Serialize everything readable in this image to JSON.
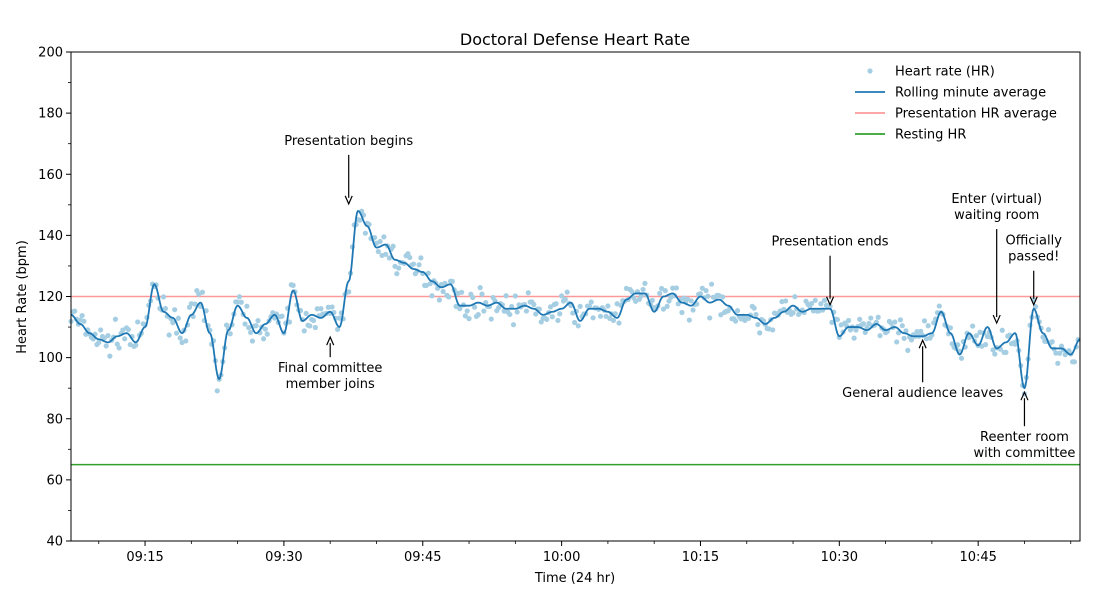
{
  "chart_data": {
    "type": "line",
    "title": "Doctoral Defense Heart Rate",
    "xlabel": "Time (24 hr)",
    "ylabel": "Heart Rate (bpm)",
    "xlim": [
      "09:07",
      "10:56"
    ],
    "ylim": [
      40,
      200
    ],
    "x_major_ticks": [
      "09:15",
      "09:30",
      "09:45",
      "10:00",
      "10:15",
      "10:30",
      "10:45"
    ],
    "y_major_ticks": [
      40,
      60,
      80,
      100,
      120,
      140,
      160,
      180,
      200
    ],
    "grid": false,
    "legend": {
      "location": "top-right",
      "entries": [
        {
          "label": "Heart rate (HR)",
          "kind": "points",
          "color": "#a6cee3"
        },
        {
          "label": "Rolling minute average",
          "kind": "line",
          "color": "#1f78b4"
        },
        {
          "label": "Presentation HR average",
          "kind": "line",
          "color": "#fb9a99"
        },
        {
          "label": "Resting HR",
          "kind": "line",
          "color": "#33a02c"
        }
      ]
    },
    "reference_lines": {
      "presentation_hr_average": 120,
      "resting_hr": 65
    },
    "rolling_average": [
      [
        "09:07",
        114
      ],
      [
        "09:08",
        111
      ],
      [
        "09:09",
        108
      ],
      [
        "09:10",
        106
      ],
      [
        "09:11",
        105
      ],
      [
        "09:12",
        107
      ],
      [
        "09:13",
        108
      ],
      [
        "09:14",
        105
      ],
      [
        "09:15",
        110
      ],
      [
        "09:16",
        124
      ],
      [
        "09:17",
        115
      ],
      [
        "09:18",
        113
      ],
      [
        "09:19",
        108
      ],
      [
        "09:20",
        114
      ],
      [
        "09:21",
        118
      ],
      [
        "09:22",
        108
      ],
      [
        "09:23",
        93
      ],
      [
        "09:24",
        109
      ],
      [
        "09:25",
        117
      ],
      [
        "09:26",
        113
      ],
      [
        "09:27",
        108
      ],
      [
        "09:28",
        111
      ],
      [
        "09:29",
        114
      ],
      [
        "09:30",
        108
      ],
      [
        "09:31",
        122
      ],
      [
        "09:32",
        112
      ],
      [
        "09:33",
        114
      ],
      [
        "09:34",
        113
      ],
      [
        "09:35",
        115
      ],
      [
        "09:36",
        110
      ],
      [
        "09:37",
        125
      ],
      [
        "09:38",
        148
      ],
      [
        "09:39",
        143
      ],
      [
        "09:40",
        136
      ],
      [
        "09:41",
        137
      ],
      [
        "09:42",
        132
      ],
      [
        "09:43",
        131
      ],
      [
        "09:44",
        129
      ],
      [
        "09:45",
        128
      ],
      [
        "09:46",
        125
      ],
      [
        "09:47",
        123
      ],
      [
        "09:48",
        124
      ],
      [
        "09:49",
        117
      ],
      [
        "09:50",
        117
      ],
      [
        "09:51",
        118
      ],
      [
        "09:52",
        117
      ],
      [
        "09:53",
        118
      ],
      [
        "09:54",
        116
      ],
      [
        "09:55",
        116
      ],
      [
        "09:56",
        117
      ],
      [
        "09:57",
        116
      ],
      [
        "09:58",
        114
      ],
      [
        "09:59",
        115
      ],
      [
        "10:00",
        116
      ],
      [
        "10:01",
        118
      ],
      [
        "10:02",
        112
      ],
      [
        "10:03",
        116
      ],
      [
        "10:04",
        116
      ],
      [
        "10:05",
        115
      ],
      [
        "10:06",
        113
      ],
      [
        "10:07",
        119
      ],
      [
        "10:08",
        121
      ],
      [
        "10:09",
        121
      ],
      [
        "10:10",
        115
      ],
      [
        "10:11",
        120
      ],
      [
        "10:12",
        121
      ],
      [
        "10:13",
        118
      ],
      [
        "10:14",
        117
      ],
      [
        "10:15",
        120
      ],
      [
        "10:16",
        118
      ],
      [
        "10:17",
        119
      ],
      [
        "10:18",
        117
      ],
      [
        "10:19",
        114
      ],
      [
        "10:20",
        114
      ],
      [
        "10:21",
        113
      ],
      [
        "10:22",
        111
      ],
      [
        "10:23",
        113
      ],
      [
        "10:24",
        115
      ],
      [
        "10:25",
        117
      ],
      [
        "10:26",
        115
      ],
      [
        "10:27",
        116
      ],
      [
        "10:28",
        116
      ],
      [
        "10:29",
        116
      ],
      [
        "10:30",
        107
      ],
      [
        "10:31",
        110
      ],
      [
        "10:32",
        110
      ],
      [
        "10:33",
        109
      ],
      [
        "10:34",
        111
      ],
      [
        "10:35",
        109
      ],
      [
        "10:36",
        110
      ],
      [
        "10:37",
        108
      ],
      [
        "10:38",
        107
      ],
      [
        "10:39",
        107
      ],
      [
        "10:40",
        108
      ],
      [
        "10:41",
        115
      ],
      [
        "10:42",
        108
      ],
      [
        "10:43",
        101
      ],
      [
        "10:44",
        108
      ],
      [
        "10:45",
        104
      ],
      [
        "10:46",
        110
      ],
      [
        "10:47",
        103
      ],
      [
        "10:48",
        105
      ],
      [
        "10:49",
        108
      ],
      [
        "10:50",
        90
      ],
      [
        "10:51",
        116
      ],
      [
        "10:52",
        108
      ],
      [
        "10:53",
        103
      ],
      [
        "10:54",
        103
      ],
      [
        "10:55",
        101
      ],
      [
        "10:56",
        106
      ]
    ],
    "annotations": [
      {
        "text_lines": [
          "Presentation begins"
        ],
        "x": "09:37",
        "y": 149
      },
      {
        "text_lines": [
          "Final committee",
          "member joins"
        ],
        "x": "09:35",
        "y": 108
      },
      {
        "text_lines": [
          "Presentation ends"
        ],
        "x": "10:29",
        "y": 116
      },
      {
        "text_lines": [
          "General audience leaves"
        ],
        "x": "10:39",
        "y": 107
      },
      {
        "text_lines": [
          "Enter (virtual)",
          "waiting room"
        ],
        "x": "10:47",
        "y": 110
      },
      {
        "text_lines": [
          "Officially",
          "passed!"
        ],
        "x": "10:51",
        "y": 116
      },
      {
        "text_lines": [
          "Reenter room",
          "with committee"
        ],
        "x": "10:50",
        "y": 90
      }
    ]
  }
}
